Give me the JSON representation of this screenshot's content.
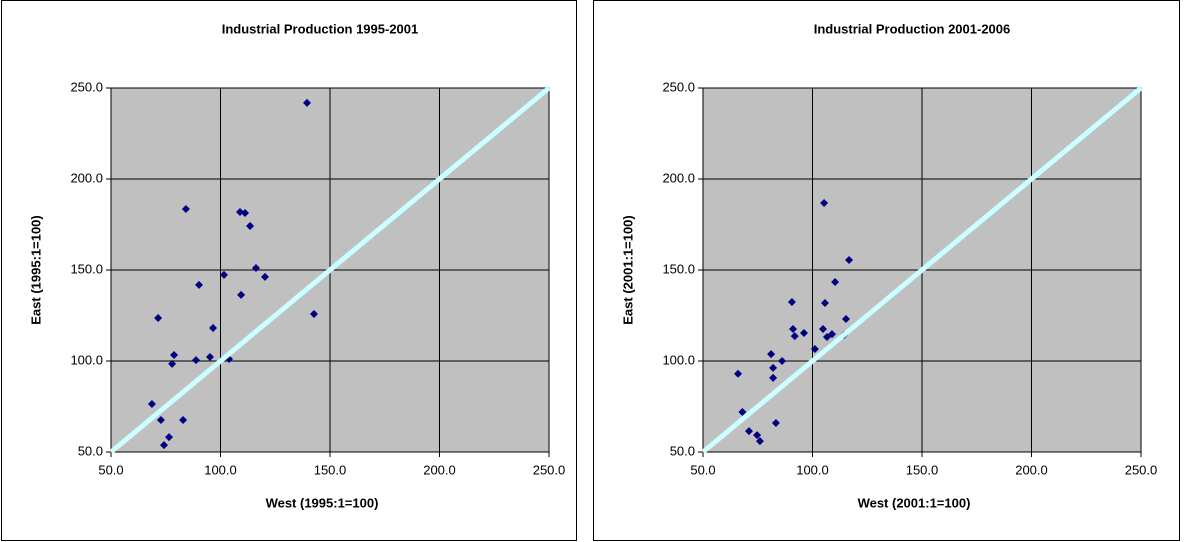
{
  "chart_data": [
    {
      "type": "scatter",
      "title": "Industrial Production 1995-2001",
      "xlabel": "West  (1995:1=100)",
      "ylabel": "East (1995:1=100)",
      "xlim": [
        50,
        250
      ],
      "ylim": [
        50,
        250
      ],
      "xticks": [
        {
          "value": 50,
          "label": "50.0"
        },
        {
          "value": 100,
          "label": "100.0"
        },
        {
          "value": 150,
          "label": "150.0"
        },
        {
          "value": 200,
          "label": "200.0"
        },
        {
          "value": 250,
          "label": "250.0"
        }
      ],
      "yticks": [
        {
          "value": 50,
          "label": "50.0"
        },
        {
          "value": 100,
          "label": "100.0"
        },
        {
          "value": 150,
          "label": "150.0"
        },
        {
          "value": 200,
          "label": "200.0"
        },
        {
          "value": 250,
          "label": "250.0"
        }
      ],
      "grid": true,
      "plot_background": "#c0c0c0",
      "reference_line": {
        "x": [
          50,
          250
        ],
        "values": [
          50,
          250
        ],
        "color": "#ccffff"
      },
      "series": [
        {
          "color": "#000080",
          "x": [
            139.5,
            84.2,
            108.9,
            111.2,
            113.5,
            116.2,
            120.3,
            101.6,
            90.2,
            109.4,
            71.5,
            96.6,
            142.7,
            95.2,
            88.8,
            103.9,
            78.8,
            77.9,
            68.7,
            82.9,
            72.8,
            76.5,
            74.2
          ],
          "values": [
            241.8,
            183.5,
            181.9,
            181.3,
            174.2,
            151.1,
            146.2,
            147.3,
            141.8,
            136.3,
            123.6,
            118.1,
            125.8,
            102.2,
            100.5,
            101.1,
            103.3,
            98.4,
            76.4,
            67.6,
            67.6,
            58.2,
            53.8
          ]
        }
      ]
    },
    {
      "type": "scatter",
      "title": "Industrial Production 2001-2006",
      "xlabel": "West  (2001:1=100)",
      "ylabel": "East (2001:1=100)",
      "xlim": [
        50,
        250
      ],
      "ylim": [
        50,
        250
      ],
      "xticks": [
        {
          "value": 50,
          "label": "50.0"
        },
        {
          "value": 100,
          "label": "100.0"
        },
        {
          "value": 150,
          "label": "150.0"
        },
        {
          "value": 200,
          "label": "200.0"
        },
        {
          "value": 250,
          "label": "250.0"
        }
      ],
      "yticks": [
        {
          "value": 50,
          "label": "50.0"
        },
        {
          "value": 100,
          "label": "100.0"
        },
        {
          "value": 150,
          "label": "150.0"
        },
        {
          "value": 200,
          "label": "200.0"
        },
        {
          "value": 250,
          "label": "250.0"
        }
      ],
      "grid": true,
      "plot_background": "#c0c0c0",
      "reference_line": {
        "x": [
          50,
          250
        ],
        "values": [
          50,
          250
        ],
        "color": "#ccffff"
      },
      "series": [
        {
          "color": "#000080",
          "x": [
            105.3,
            116.7,
            110.3,
            91.1,
            105.7,
            90.6,
            96.1,
            91.9,
            104.8,
            106.6,
            108.9,
            115.3,
            114.4,
            81.1,
            86.1,
            82.0,
            82.0,
            101.1,
            66,
            68,
            71,
            74.7,
            76,
            83.3
          ],
          "values": [
            186.8,
            155.5,
            143.4,
            117.6,
            131.9,
            132.4,
            115.4,
            113.7,
            117.6,
            113.2,
            114.8,
            123.1,
            114.3,
            103.8,
            100.0,
            96.2,
            90.7,
            106.6,
            93,
            72,
            61.5,
            59.3,
            56,
            65.9
          ]
        }
      ]
    }
  ]
}
